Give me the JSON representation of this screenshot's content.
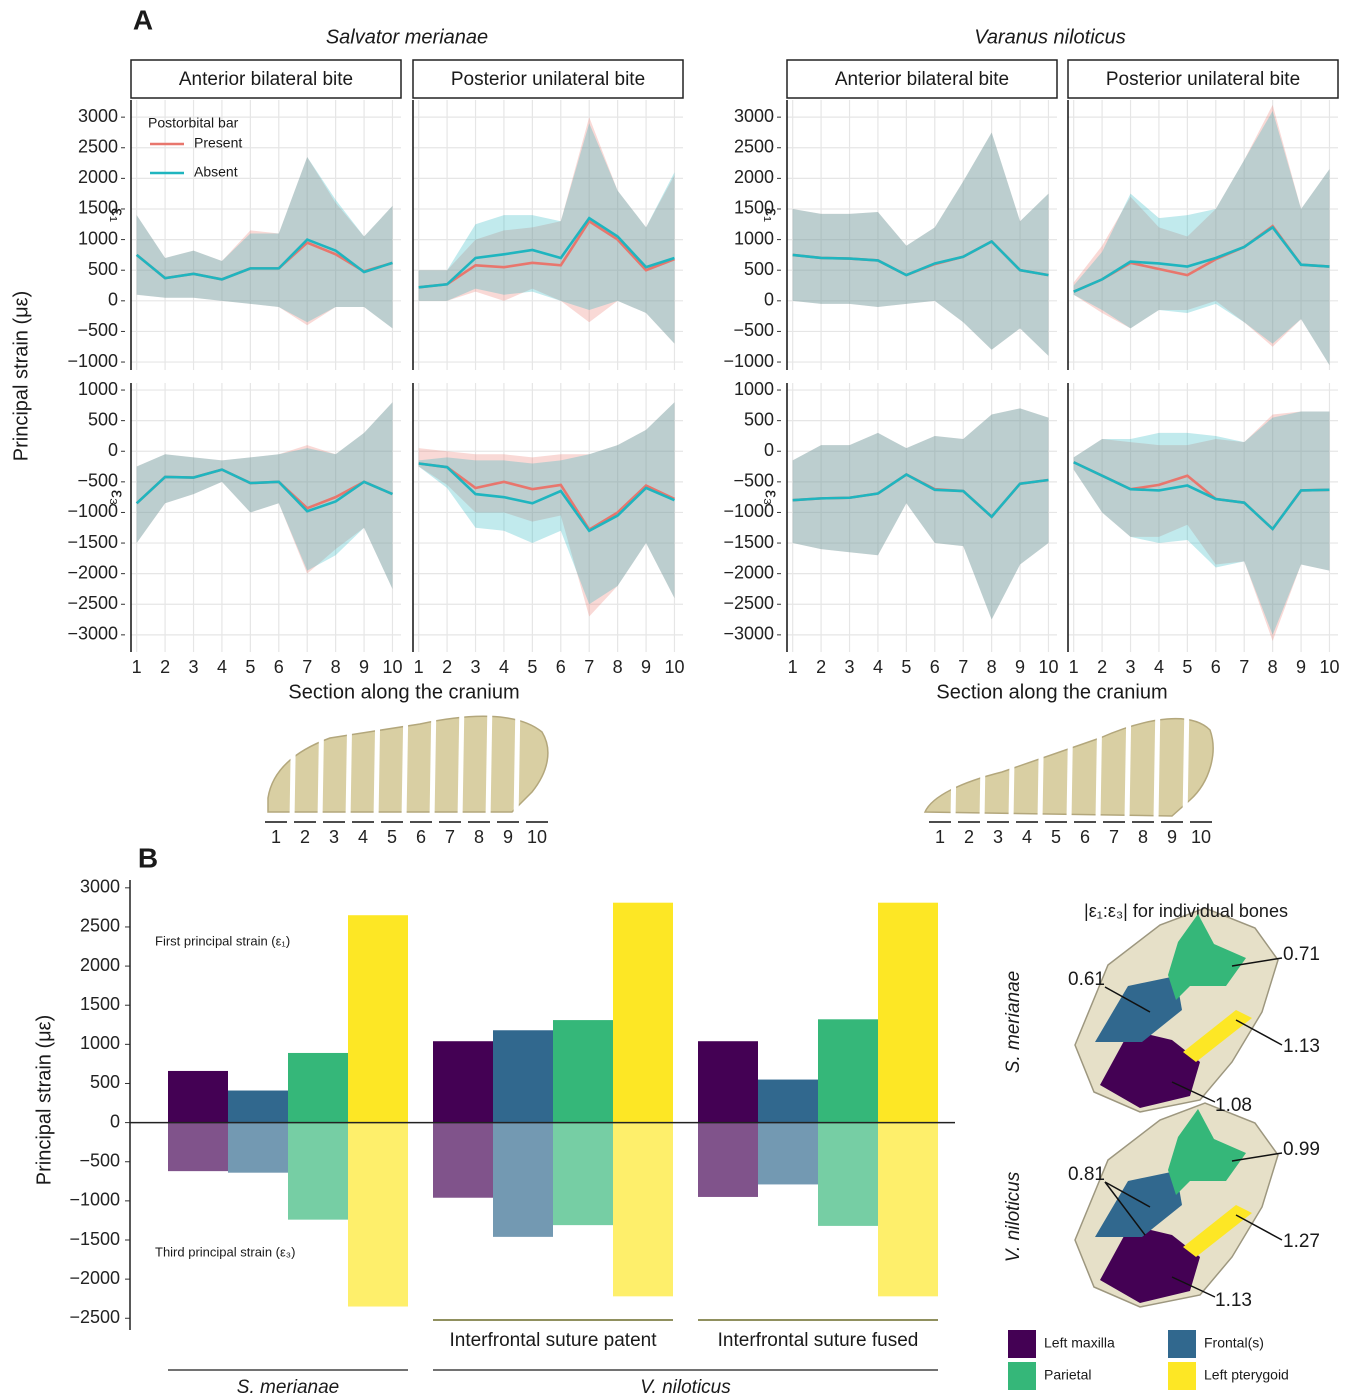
{
  "chart_data": [
    {
      "type": "line",
      "panel_label": "A",
      "title": "Salvator merianae",
      "x_label": "Section along the cranium",
      "y_label": "Principal strain (με)",
      "x": [
        1,
        2,
        3,
        4,
        5,
        6,
        7,
        8,
        9,
        10
      ],
      "xlim": [
        0.8,
        10.3
      ],
      "legend_title": "Postorbital bar",
      "series_names": [
        "Present",
        "Absent"
      ],
      "series_colors": [
        "#e8766d",
        "#1fb5bf"
      ],
      "cols": [
        "Anterior bilateral bite",
        "Posterior unilateral bite"
      ],
      "rows": [
        {
          "label": "ε₁",
          "ylim": [
            -1130,
            3280
          ],
          "yticks": [
            3000,
            2500,
            2000,
            1500,
            1000,
            500,
            0,
            {
              "value": -500,
              "label": "−500"
            },
            {
              "value": -1000,
              "label": "−1000"
            }
          ]
        },
        {
          "label": "ε₃",
          "ylim": [
            -3280,
            1115
          ],
          "yticks": [
            1000,
            500,
            0,
            {
              "value": -500,
              "label": "−500"
            },
            {
              "value": -1000,
              "label": "−1000"
            },
            {
              "value": -1500,
              "label": "−1500"
            },
            {
              "value": -2000,
              "label": "−2000"
            },
            {
              "value": -2500,
              "label": "−2500"
            },
            {
              "value": -3000,
              "label": "−3000"
            }
          ]
        }
      ],
      "facets": [
        {
          "row": 0,
          "col": 0,
          "series": [
            {
              "values": [
                750,
                370,
                440,
                350,
                530,
                530,
                950,
                760,
                480,
                620
              ],
              "lower": [
                100,
                50,
                50,
                0,
                -50,
                -100,
                -400,
                -100,
                -100,
                -450
              ],
              "upper": [
                1400,
                700,
                820,
                650,
                1150,
                1100,
                2350,
                1600,
                1050,
                1550
              ]
            },
            {
              "values": [
                750,
                370,
                440,
                350,
                530,
                530,
                1000,
                820,
                470,
                620
              ],
              "lower": [
                100,
                50,
                50,
                0,
                -50,
                -100,
                -350,
                -100,
                -100,
                -450
              ],
              "upper": [
                1400,
                700,
                820,
                650,
                1100,
                1100,
                2350,
                1650,
                1050,
                1550
              ]
            }
          ]
        },
        {
          "row": 0,
          "col": 1,
          "series": [
            {
              "values": [
                220,
                270,
                580,
                550,
                620,
                580,
                1300,
                1000,
                500,
                680
              ],
              "lower": [
                0,
                0,
                150,
                0,
                200,
                0,
                -350,
                0,
                -200,
                -700
              ],
              "upper": [
                500,
                500,
                1000,
                1150,
                1200,
                1300,
                3000,
                1800,
                1200,
                2050
              ]
            },
            {
              "values": [
                220,
                270,
                700,
                760,
                830,
                700,
                1350,
                1050,
                550,
                700
              ],
              "lower": [
                0,
                0,
                200,
                100,
                150,
                0,
                -150,
                0,
                -200,
                -700
              ],
              "upper": [
                500,
                500,
                1250,
                1400,
                1400,
                1300,
                2900,
                1800,
                1200,
                2100
              ]
            }
          ]
        },
        {
          "row": 1,
          "col": 0,
          "series": [
            {
              "values": [
                -850,
                -420,
                -430,
                -300,
                -520,
                -500,
                -930,
                -750,
                -500,
                -700
              ],
              "lower": [
                -1500,
                -850,
                -700,
                -500,
                -1000,
                -850,
                -2000,
                -1600,
                -1250,
                -2250
              ],
              "upper": [
                -250,
                -50,
                -100,
                -150,
                -100,
                -50,
                100,
                -50,
                300,
                800
              ]
            },
            {
              "values": [
                -850,
                -420,
                -430,
                -300,
                -520,
                -500,
                -980,
                -820,
                -500,
                -700
              ],
              "lower": [
                -1500,
                -850,
                -700,
                -500,
                -1000,
                -850,
                -1950,
                -1700,
                -1250,
                -2250
              ],
              "upper": [
                -250,
                -50,
                -100,
                -150,
                -100,
                -50,
                50,
                -50,
                300,
                800
              ]
            }
          ]
        },
        {
          "row": 1,
          "col": 1,
          "series": [
            {
              "values": [
                -200,
                -260,
                -600,
                -500,
                -620,
                -550,
                -1280,
                -1000,
                -560,
                -780
              ],
              "lower": [
                -250,
                -550,
                -1000,
                -1000,
                -1150,
                -1050,
                -2700,
                -2200,
                -1500,
                -2400
              ],
              "upper": [
                50,
                0,
                -50,
                -50,
                -100,
                -50,
                -50,
                100,
                350,
                800
              ]
            },
            {
              "values": [
                -200,
                -260,
                -700,
                -750,
                -850,
                -650,
                -1300,
                -1050,
                -600,
                -800
              ],
              "lower": [
                -250,
                -600,
                -1250,
                -1300,
                -1500,
                -1300,
                -2500,
                -2200,
                -1500,
                -2400
              ],
              "upper": [
                -150,
                -100,
                -150,
                -150,
                -200,
                -150,
                -50,
                100,
                350,
                800
              ]
            }
          ]
        }
      ]
    },
    {
      "type": "line",
      "title": "Varanus niloticus",
      "x_label": "Section along the cranium",
      "x": [
        1,
        2,
        3,
        4,
        5,
        6,
        7,
        8,
        9,
        10
      ],
      "xlim": [
        0.8,
        10.3
      ],
      "series_colors": [
        "#e8766d",
        "#1fb5bf"
      ],
      "cols": [
        "Anterior bilateral bite",
        "Posterior unilateral bite"
      ],
      "rows": [
        {
          "label": "ε₁",
          "ylim": [
            -1130,
            3280
          ],
          "yticks": [
            3000,
            2500,
            2000,
            1500,
            1000,
            500,
            0,
            {
              "value": -500,
              "label": "−500"
            },
            {
              "value": -1000,
              "label": "−1000"
            }
          ]
        },
        {
          "label": "ε₃",
          "ylim": [
            -3280,
            1115
          ],
          "yticks": [
            1000,
            500,
            0,
            {
              "value": -500,
              "label": "−500"
            },
            {
              "value": -1000,
              "label": "−1000"
            },
            {
              "value": -1500,
              "label": "−1500"
            },
            {
              "value": -2000,
              "label": "−2000"
            },
            {
              "value": -2500,
              "label": "−2500"
            },
            {
              "value": -3000,
              "label": "−3000"
            }
          ]
        }
      ],
      "facets": [
        {
          "row": 0,
          "col": 0,
          "series": [
            {
              "values": [
                750,
                700,
                690,
                660,
                420,
                600,
                720,
                970,
                500,
                420
              ],
              "lower": [
                0,
                -50,
                -50,
                -100,
                -50,
                0,
                -350,
                -800,
                -450,
                -900
              ],
              "upper": [
                1500,
                1420,
                1420,
                1450,
                900,
                1200,
                1950,
                2750,
                1300,
                1750
              ]
            },
            {
              "values": [
                750,
                700,
                690,
                660,
                420,
                610,
                720,
                970,
                500,
                420
              ],
              "lower": [
                0,
                -50,
                -50,
                -100,
                -50,
                0,
                -350,
                -800,
                -450,
                -900
              ],
              "upper": [
                1500,
                1420,
                1420,
                1450,
                900,
                1200,
                1950,
                2750,
                1300,
                1750
              ]
            }
          ]
        },
        {
          "row": 0,
          "col": 1,
          "series": [
            {
              "values": [
                150,
                350,
                620,
                520,
                420,
                680,
                880,
                1220,
                590,
                560
              ],
              "lower": [
                100,
                -200,
                -450,
                -150,
                -150,
                0,
                -350,
                -750,
                -300,
                -1050
              ],
              "upper": [
                300,
                900,
                1700,
                1200,
                1050,
                1500,
                2300,
                3200,
                1500,
                2150
              ]
            },
            {
              "values": [
                150,
                350,
                640,
                610,
                560,
                700,
                880,
                1200,
                590,
                560
              ],
              "lower": [
                100,
                -150,
                -450,
                -150,
                -200,
                -50,
                -350,
                -700,
                -300,
                -1050
              ],
              "upper": [
                250,
                800,
                1750,
                1350,
                1400,
                1500,
                2300,
                3100,
                1500,
                2150
              ]
            }
          ]
        },
        {
          "row": 1,
          "col": 0,
          "series": [
            {
              "values": [
                -800,
                -770,
                -760,
                -690,
                -380,
                -620,
                -650,
                -1070,
                -530,
                -470
              ],
              "lower": [
                -1500,
                -1600,
                -1650,
                -1700,
                -850,
                -1500,
                -1550,
                -2750,
                -1850,
                -1500
              ],
              "upper": [
                -150,
                100,
                100,
                300,
                50,
                250,
                200,
                600,
                700,
                550
              ]
            },
            {
              "values": [
                -800,
                -770,
                -760,
                -690,
                -380,
                -630,
                -650,
                -1070,
                -530,
                -470
              ],
              "lower": [
                -1500,
                -1600,
                -1650,
                -1700,
                -850,
                -1500,
                -1550,
                -2750,
                -1850,
                -1500
              ],
              "upper": [
                -150,
                100,
                100,
                300,
                50,
                250,
                200,
                600,
                700,
                550
              ]
            }
          ]
        },
        {
          "row": 1,
          "col": 1,
          "series": [
            {
              "values": [
                -180,
                -400,
                -620,
                -550,
                -400,
                -780,
                -840,
                -1270,
                -640,
                -630
              ],
              "lower": [
                -300,
                -1000,
                -1400,
                -1400,
                -1200,
                -1850,
                -1800,
                -3100,
                -1850,
                -1950
              ],
              "upper": [
                -100,
                200,
                150,
                100,
                100,
                200,
                150,
                600,
                650,
                650
              ]
            },
            {
              "values": [
                -180,
                -400,
                -620,
                -640,
                -560,
                -780,
                -840,
                -1270,
                -640,
                -630
              ],
              "lower": [
                -300,
                -1000,
                -1400,
                -1500,
                -1450,
                -1900,
                -1800,
                -3000,
                -1850,
                -1950
              ],
              "upper": [
                -100,
                200,
                200,
                300,
                300,
                250,
                150,
                550,
                650,
                650
              ]
            }
          ]
        }
      ]
    },
    {
      "type": "bar",
      "panel_label": "B",
      "y_label": "Principal strain (με)",
      "ylim": [
        -2650,
        3100
      ],
      "yticks": [
        3000,
        2500,
        2000,
        1500,
        1000,
        500,
        0,
        {
          "value": -500,
          "label": "−500"
        },
        {
          "value": -1000,
          "label": "−1000"
        },
        {
          "value": -1500,
          "label": "−1500"
        },
        {
          "value": -2000,
          "label": "−2000"
        },
        {
          "value": -2500,
          "label": "−2500"
        }
      ],
      "categories": [
        null,
        "Interfrontal suture patent",
        "Interfrontal suture fused"
      ],
      "species_labels": [
        "S. merianae",
        "V. niloticus"
      ],
      "annotations": [
        "First principal strain (ε₁)",
        "Third principal strain (ε₃)"
      ],
      "series": [
        {
          "name": "Left maxilla",
          "color": "#440154",
          "first": [
            660,
            1040,
            1040
          ],
          "third": [
            -620,
            -960,
            -950
          ]
        },
        {
          "name": "Frontal(s)",
          "color": "#31688e",
          "first": [
            410,
            1180,
            550
          ],
          "third": [
            -640,
            -1460,
            -790
          ]
        },
        {
          "name": "Parietal",
          "color": "#35b779",
          "first": [
            890,
            1310,
            1320
          ],
          "third": [
            -1240,
            -1310,
            -1320
          ]
        },
        {
          "name": "Left pterygoid",
          "color": "#fde725",
          "first": [
            2650,
            2810,
            2810
          ],
          "third": [
            -2350,
            -2220,
            -2220
          ]
        }
      ],
      "bone_ratios": {
        "title": "|ε₁:ε₃| for individual bones",
        "species": [
          {
            "name": "S. merianae",
            "ratios": [
              1.08,
              0.61,
              0.71,
              1.13
            ]
          },
          {
            "name": "V. niloticus",
            "ratios": [
              1.13,
              0.81,
              0.99,
              1.27
            ]
          }
        ]
      }
    }
  ]
}
